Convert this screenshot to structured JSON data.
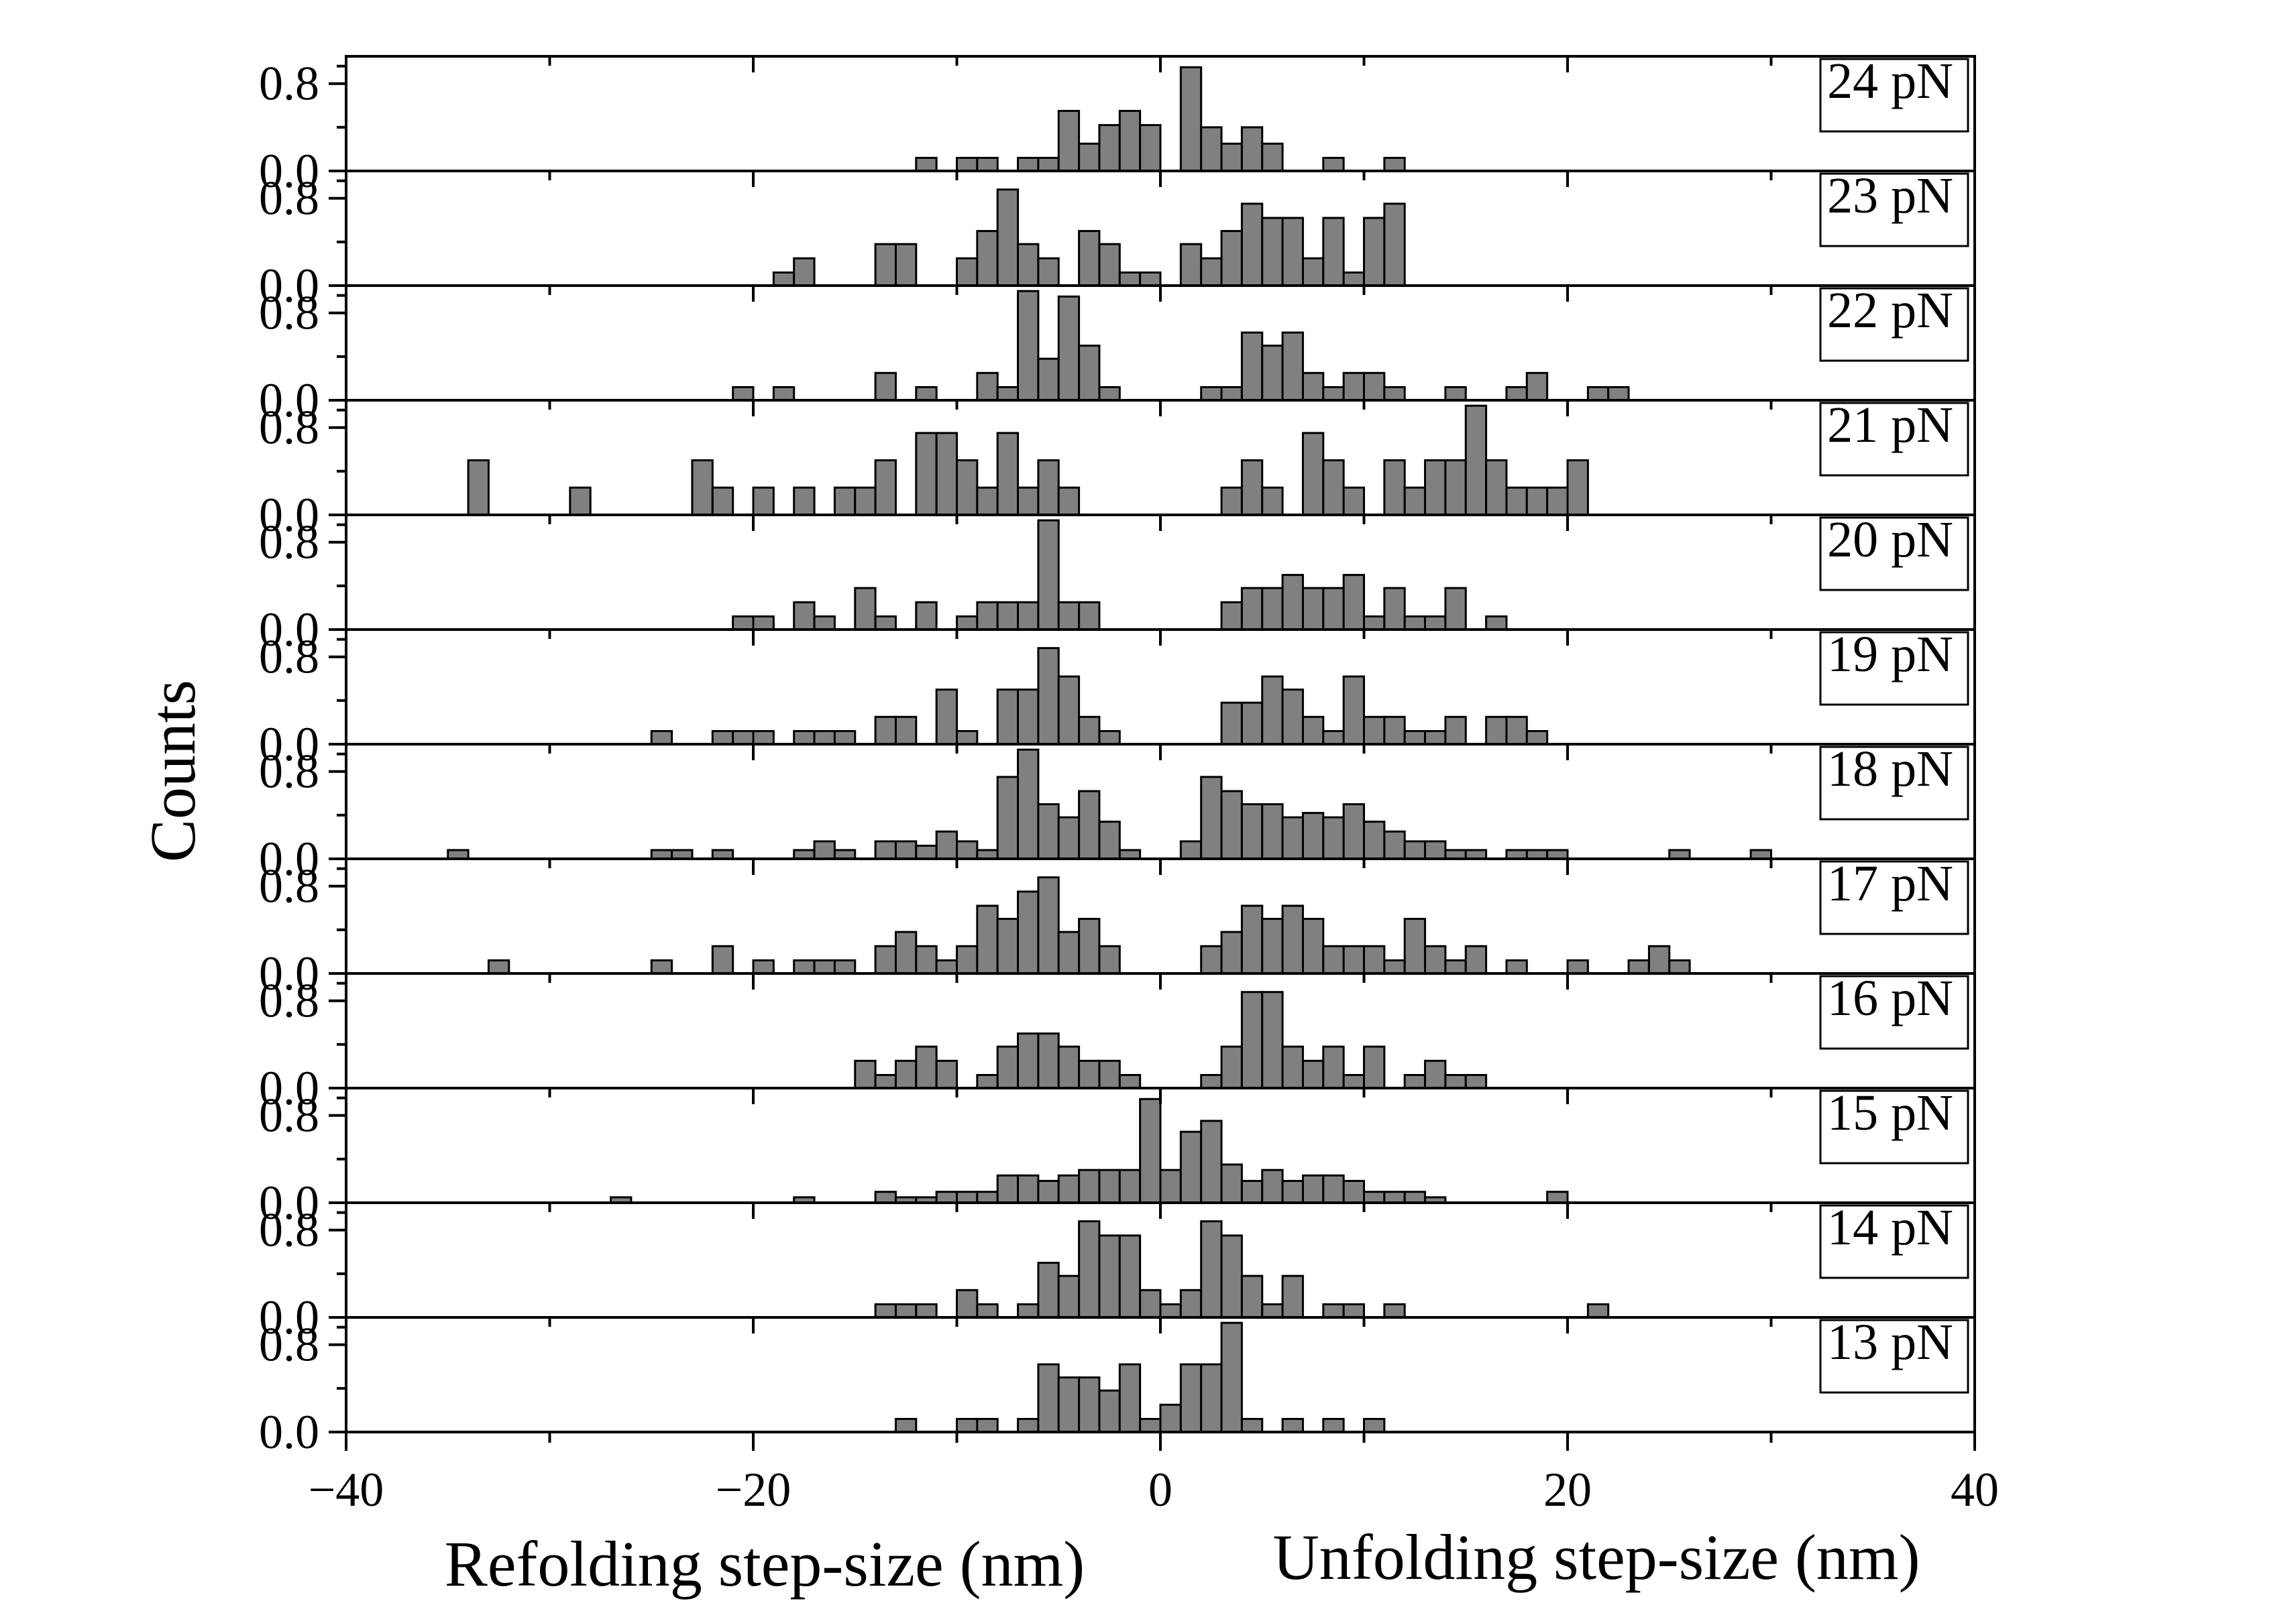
{
  "chart_data": {
    "type": "bar",
    "ylabel": "Counts",
    "xlabel_left": "Refolding step-size (nm)",
    "xlabel_right": "Unfolding step-size (nm)",
    "xlim": [
      -40,
      40
    ],
    "xticks": [
      -40,
      -20,
      0,
      20,
      40
    ],
    "xtick_labels": [
      "−40",
      "−20",
      "0",
      "20",
      "40"
    ],
    "ylim": [
      0,
      1.05
    ],
    "yticks": [
      0.0,
      0.8
    ],
    "ytick_labels": [
      "0.0",
      "0.8"
    ],
    "bin_width": 1.0,
    "bar_color": "#808080",
    "edge_color": "#000000",
    "label_placement": "top-right",
    "panels": [
      {
        "name": "24 pN",
        "x": [
          -11.5,
          -9.5,
          -8.5,
          -6.5,
          -5.5,
          -4.5,
          -3.5,
          -2.5,
          -1.5,
          -0.5,
          1.5,
          2.5,
          3.5,
          4.5,
          5.5,
          8.5,
          11.5
        ],
        "y": [
          0.12,
          0.12,
          0.12,
          0.12,
          0.12,
          0.55,
          0.25,
          0.42,
          0.55,
          0.42,
          0.95,
          0.4,
          0.25,
          0.4,
          0.25,
          0.12,
          0.12
        ]
      },
      {
        "name": "23 pN",
        "x": [
          -18.5,
          -17.5,
          -13.5,
          -12.5,
          -9.5,
          -8.5,
          -7.5,
          -6.5,
          -5.5,
          -3.5,
          -2.5,
          -1.5,
          -0.5,
          1.5,
          2.5,
          3.5,
          4.5,
          5.5,
          6.5,
          7.5,
          8.5,
          9.5,
          10.5,
          11.5
        ],
        "y": [
          0.12,
          0.25,
          0.38,
          0.38,
          0.25,
          0.5,
          0.88,
          0.38,
          0.25,
          0.5,
          0.38,
          0.12,
          0.12,
          0.38,
          0.25,
          0.5,
          0.75,
          0.62,
          0.62,
          0.25,
          0.62,
          0.12,
          0.62,
          0.75
        ]
      },
      {
        "name": "22 pN",
        "x": [
          -20.5,
          -18.5,
          -13.5,
          -11.5,
          -8.5,
          -7.5,
          -6.5,
          -5.5,
          -4.5,
          -3.5,
          -2.5,
          2.5,
          3.5,
          4.5,
          5.5,
          6.5,
          7.5,
          8.5,
          9.5,
          10.5,
          11.5,
          14.5,
          17.5,
          18.5,
          21.5,
          22.5
        ],
        "y": [
          0.12,
          0.12,
          0.25,
          0.12,
          0.25,
          0.12,
          1.0,
          0.38,
          0.95,
          0.5,
          0.12,
          0.12,
          0.12,
          0.62,
          0.5,
          0.62,
          0.25,
          0.12,
          0.25,
          0.25,
          0.12,
          0.12,
          0.12,
          0.25,
          0.12,
          0.12
        ]
      },
      {
        "name": "21 pN",
        "x": [
          -33.5,
          -28.5,
          -22.5,
          -21.5,
          -19.5,
          -17.5,
          -15.5,
          -14.5,
          -13.5,
          -11.5,
          -10.5,
          -9.5,
          -8.5,
          -7.5,
          -6.5,
          -5.5,
          -4.5,
          3.5,
          4.5,
          5.5,
          7.5,
          8.5,
          9.5,
          11.5,
          12.5,
          13.5,
          14.5,
          15.5,
          16.5,
          17.5,
          18.5,
          19.5,
          20.5
        ],
        "y": [
          0.5,
          0.25,
          0.5,
          0.25,
          0.25,
          0.25,
          0.25,
          0.25,
          0.5,
          0.75,
          0.75,
          0.5,
          0.25,
          0.75,
          0.25,
          0.5,
          0.25,
          0.25,
          0.5,
          0.25,
          0.75,
          0.5,
          0.25,
          0.5,
          0.25,
          0.5,
          0.5,
          1.0,
          0.5,
          0.25,
          0.25,
          0.25,
          0.5
        ]
      },
      {
        "name": "20 pN",
        "x": [
          -20.5,
          -19.5,
          -17.5,
          -16.5,
          -14.5,
          -13.5,
          -11.5,
          -9.5,
          -8.5,
          -7.5,
          -6.5,
          -5.5,
          -4.5,
          -3.5,
          3.5,
          4.5,
          5.5,
          6.5,
          7.5,
          8.5,
          9.5,
          10.5,
          11.5,
          12.5,
          13.5,
          14.5,
          16.5
        ],
        "y": [
          0.12,
          0.12,
          0.25,
          0.12,
          0.38,
          0.12,
          0.25,
          0.12,
          0.25,
          0.25,
          0.25,
          1.0,
          0.25,
          0.25,
          0.25,
          0.38,
          0.38,
          0.5,
          0.38,
          0.38,
          0.5,
          0.12,
          0.38,
          0.12,
          0.12,
          0.38,
          0.12
        ]
      },
      {
        "name": "19 pN",
        "x": [
          -24.5,
          -21.5,
          -20.5,
          -19.5,
          -17.5,
          -16.5,
          -15.5,
          -13.5,
          -12.5,
          -10.5,
          -9.5,
          -7.5,
          -6.5,
          -5.5,
          -4.5,
          -3.5,
          -2.5,
          3.5,
          4.5,
          5.5,
          6.5,
          7.5,
          8.5,
          9.5,
          10.5,
          11.5,
          12.5,
          13.5,
          14.5,
          16.5,
          17.5,
          18.5
        ],
        "y": [
          0.12,
          0.12,
          0.12,
          0.12,
          0.12,
          0.12,
          0.12,
          0.25,
          0.25,
          0.5,
          0.12,
          0.5,
          0.5,
          0.88,
          0.62,
          0.25,
          0.12,
          0.38,
          0.38,
          0.62,
          0.5,
          0.25,
          0.12,
          0.62,
          0.25,
          0.25,
          0.12,
          0.12,
          0.25,
          0.25,
          0.25,
          0.12
        ]
      },
      {
        "name": "18 pN",
        "x": [
          -34.5,
          -24.5,
          -23.5,
          -21.5,
          -17.5,
          -16.5,
          -15.5,
          -13.5,
          -12.5,
          -11.5,
          -10.5,
          -9.5,
          -8.5,
          -7.5,
          -6.5,
          -5.5,
          -4.5,
          -3.5,
          -2.5,
          -1.5,
          1.5,
          2.5,
          3.5,
          4.5,
          5.5,
          6.5,
          7.5,
          8.5,
          9.5,
          10.5,
          11.5,
          12.5,
          13.5,
          14.5,
          15.5,
          17.5,
          18.5,
          19.5,
          25.5,
          29.5
        ],
        "y": [
          0.08,
          0.08,
          0.08,
          0.08,
          0.08,
          0.16,
          0.08,
          0.16,
          0.16,
          0.12,
          0.25,
          0.16,
          0.08,
          0.75,
          1.0,
          0.5,
          0.38,
          0.62,
          0.34,
          0.08,
          0.16,
          0.75,
          0.62,
          0.5,
          0.5,
          0.38,
          0.42,
          0.38,
          0.5,
          0.34,
          0.25,
          0.16,
          0.16,
          0.08,
          0.08,
          0.08,
          0.08,
          0.08,
          0.08,
          0.08
        ]
      },
      {
        "name": "17 pN",
        "x": [
          -32.5,
          -24.5,
          -21.5,
          -19.5,
          -17.5,
          -16.5,
          -15.5,
          -13.5,
          -12.5,
          -11.5,
          -10.5,
          -9.5,
          -8.5,
          -7.5,
          -6.5,
          -5.5,
          -4.5,
          -3.5,
          -2.5,
          2.5,
          3.5,
          4.5,
          5.5,
          6.5,
          7.5,
          8.5,
          9.5,
          10.5,
          11.5,
          12.5,
          13.5,
          14.5,
          15.5,
          17.5,
          20.5,
          23.5,
          24.5,
          25.5
        ],
        "y": [
          0.12,
          0.12,
          0.25,
          0.12,
          0.12,
          0.12,
          0.12,
          0.25,
          0.38,
          0.25,
          0.12,
          0.25,
          0.62,
          0.5,
          0.75,
          0.88,
          0.38,
          0.5,
          0.25,
          0.25,
          0.38,
          0.62,
          0.5,
          0.62,
          0.5,
          0.25,
          0.25,
          0.25,
          0.12,
          0.5,
          0.25,
          0.12,
          0.25,
          0.12,
          0.12,
          0.12,
          0.25,
          0.12
        ]
      },
      {
        "name": "16 pN",
        "x": [
          -14.5,
          -13.5,
          -12.5,
          -11.5,
          -10.5,
          -8.5,
          -7.5,
          -6.5,
          -5.5,
          -4.5,
          -3.5,
          -2.5,
          -1.5,
          2.5,
          3.5,
          4.5,
          5.5,
          6.5,
          7.5,
          8.5,
          9.5,
          10.5,
          12.5,
          13.5,
          14.5,
          15.5
        ],
        "y": [
          0.25,
          0.12,
          0.25,
          0.38,
          0.25,
          0.12,
          0.38,
          0.5,
          0.5,
          0.38,
          0.25,
          0.25,
          0.12,
          0.12,
          0.38,
          0.88,
          0.88,
          0.38,
          0.25,
          0.38,
          0.12,
          0.38,
          0.12,
          0.25,
          0.12,
          0.12
        ]
      },
      {
        "name": "15 pN",
        "x": [
          -26.5,
          -17.5,
          -13.5,
          -12.5,
          -11.5,
          -10.5,
          -9.5,
          -8.5,
          -7.5,
          -6.5,
          -5.5,
          -4.5,
          -3.5,
          -2.5,
          -1.5,
          -0.5,
          0.5,
          1.5,
          2.5,
          3.5,
          4.5,
          5.5,
          6.5,
          7.5,
          8.5,
          9.5,
          10.5,
          11.5,
          12.5,
          13.5,
          19.5
        ],
        "y": [
          0.05,
          0.05,
          0.1,
          0.05,
          0.05,
          0.1,
          0.1,
          0.1,
          0.25,
          0.25,
          0.2,
          0.25,
          0.3,
          0.3,
          0.3,
          0.95,
          0.3,
          0.65,
          0.75,
          0.35,
          0.2,
          0.3,
          0.2,
          0.25,
          0.25,
          0.2,
          0.1,
          0.1,
          0.1,
          0.05,
          0.1
        ]
      },
      {
        "name": "14 pN",
        "x": [
          -13.5,
          -12.5,
          -11.5,
          -9.5,
          -8.5,
          -6.5,
          -5.5,
          -4.5,
          -3.5,
          -2.5,
          -1.5,
          -0.5,
          0.5,
          1.5,
          2.5,
          3.5,
          4.5,
          5.5,
          6.5,
          8.5,
          9.5,
          11.5,
          21.5
        ],
        "y": [
          0.12,
          0.12,
          0.12,
          0.25,
          0.12,
          0.12,
          0.5,
          0.38,
          0.88,
          0.75,
          0.75,
          0.25,
          0.12,
          0.25,
          0.88,
          0.75,
          0.38,
          0.12,
          0.38,
          0.12,
          0.12,
          0.12,
          0.12
        ]
      },
      {
        "name": "13 pN",
        "x": [
          -12.5,
          -9.5,
          -8.5,
          -6.5,
          -5.5,
          -4.5,
          -3.5,
          -2.5,
          -1.5,
          -0.5,
          0.5,
          1.5,
          2.5,
          3.5,
          4.5,
          6.5,
          8.5,
          10.5
        ],
        "y": [
          0.12,
          0.12,
          0.12,
          0.12,
          0.62,
          0.5,
          0.5,
          0.38,
          0.62,
          0.12,
          0.25,
          0.62,
          0.62,
          1.0,
          0.12,
          0.12,
          0.12,
          0.12
        ]
      }
    ]
  }
}
